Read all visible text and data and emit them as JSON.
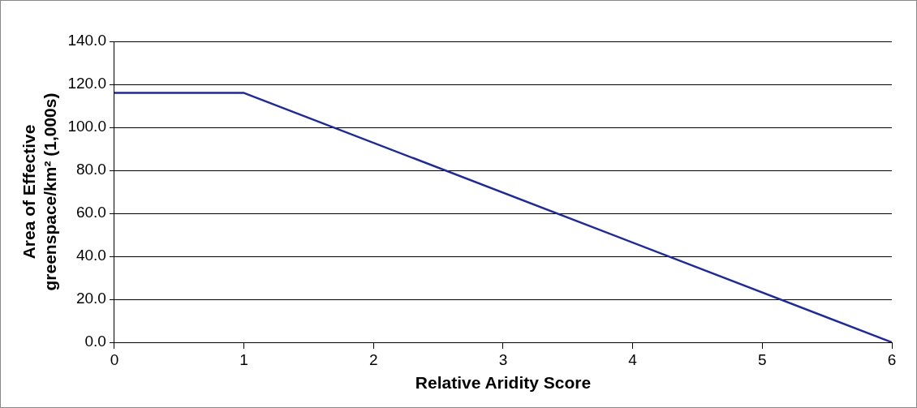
{
  "chart_data": {
    "type": "line",
    "xlabel": "Relative Aridity Score",
    "ylabel": "Area of Effective\ngreenspace/km² (1,000s)",
    "x": [
      0,
      1,
      6
    ],
    "series": [
      {
        "color": "#1f2a96",
        "values": [
          116,
          116,
          0
        ]
      }
    ],
    "xlim": [
      0,
      6
    ],
    "xticks": [
      0,
      1,
      2,
      3,
      4,
      5,
      6
    ],
    "ylim": [
      0,
      140
    ],
    "yticks": [
      {
        "value": 0,
        "label": "0.0"
      },
      {
        "value": 20,
        "label": "20.0"
      },
      {
        "value": 40,
        "label": "40.0"
      },
      {
        "value": 60,
        "label": "60.0"
      },
      {
        "value": 80,
        "label": "80.0"
      },
      {
        "value": 100,
        "label": "100.0"
      },
      {
        "value": 120,
        "label": "120.0"
      },
      {
        "value": 140,
        "label": "140.0"
      }
    ],
    "grid": "y",
    "legend": false,
    "marker": "none",
    "line_style": "solid"
  }
}
